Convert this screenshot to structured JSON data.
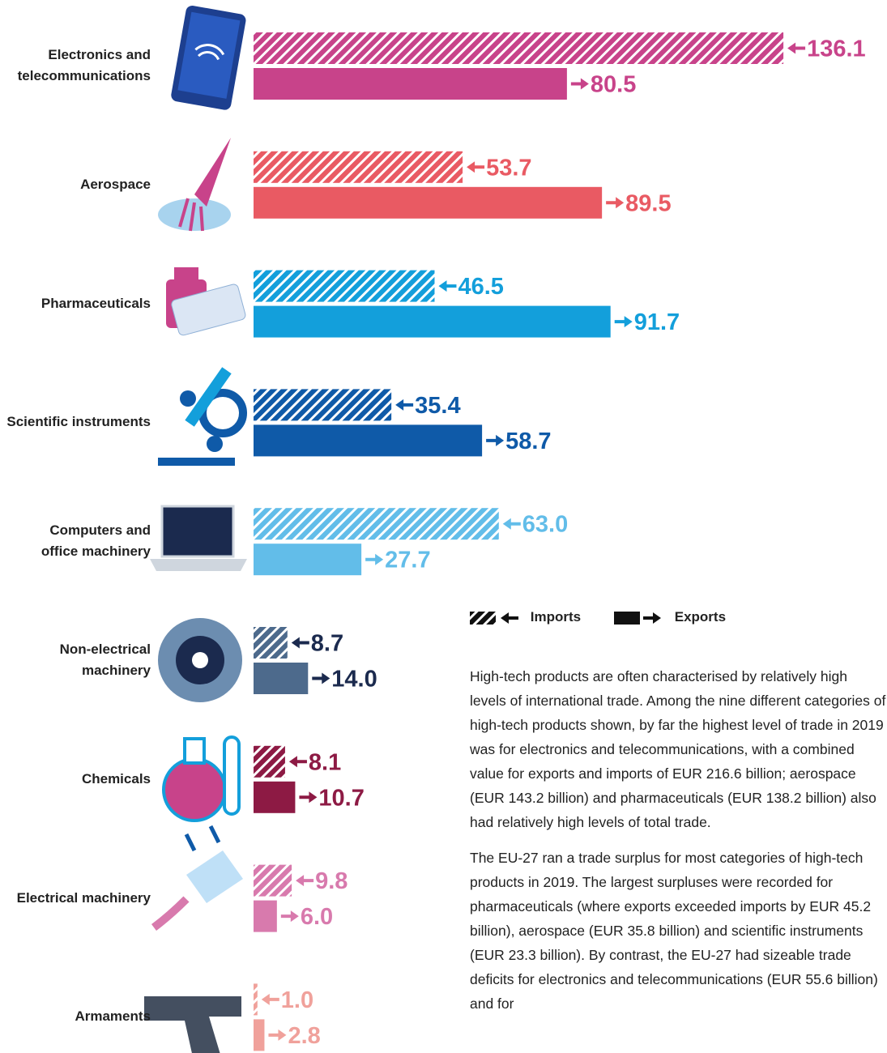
{
  "chart_data": {
    "type": "bar",
    "orientation": "horizontal",
    "categories": [
      "Electronics and telecommunications",
      "Aerospace",
      "Pharmaceuticals",
      "Scientific instruments",
      "Computers and office machinery",
      "Non-electrical machinery",
      "Chemicals",
      "Electrical machinery",
      "Armaments"
    ],
    "colors": [
      "#c8438a",
      "#e95a63",
      "#139fdb",
      "#0f5aa8",
      "#62bde9",
      "#4d6a8c",
      "#8d1a44",
      "#d87aad",
      "#f0a19b"
    ],
    "label_colors": [
      "#c8438a",
      "#e95a63",
      "#139fdb",
      "#0f5aa8",
      "#62bde9",
      "#1b2a4e",
      "#8d1a44",
      "#d87aad",
      "#f0a19b"
    ],
    "series": [
      {
        "name": "Imports",
        "pattern": "hatch",
        "values": [
          136.1,
          53.7,
          46.5,
          35.4,
          63.0,
          8.7,
          8.1,
          9.8,
          1.0
        ],
        "value_labels": [
          "136.1",
          "53.7",
          "46.5",
          "35.4",
          "63.0",
          "8.7",
          "8.1",
          "9.8",
          "1.0"
        ]
      },
      {
        "name": "Exports",
        "pattern": "solid",
        "values": [
          80.5,
          89.5,
          91.7,
          58.7,
          27.7,
          14.0,
          10.7,
          6.0,
          2.8
        ],
        "value_labels": [
          "80.5",
          "89.5",
          "91.7",
          "58.7",
          "27.7",
          "14.0",
          "10.7",
          "6.0",
          "2.8"
        ]
      }
    ]
  },
  "text": [
    "High-tech products are often characterised by relatively high levels of international trade. Among the nine different categories of high-tech products shown, by far the highest level of trade in 2019 was for electronics and telecommunications, with a combined value for exports and imports of EUR 216.6 billion; aerospace (EUR 143.2 billion) and pharmaceuticals (EUR 138.2 billion) also had relatively high levels of total trade.",
    "The EU-27 ran a trade surplus for most categories of high-tech products in 2019. The largest surpluses were recorded for pharmaceuticals (where exports exceeded imports by EUR 45.2 billion), aerospace (EUR 35.8 billion) and scientific instruments (EUR 23.3 billion). By contrast, the EU-27 had sizeable trade deficits for electronics and telecommunications (EUR 55.6 billion) and for"
  ]
}
